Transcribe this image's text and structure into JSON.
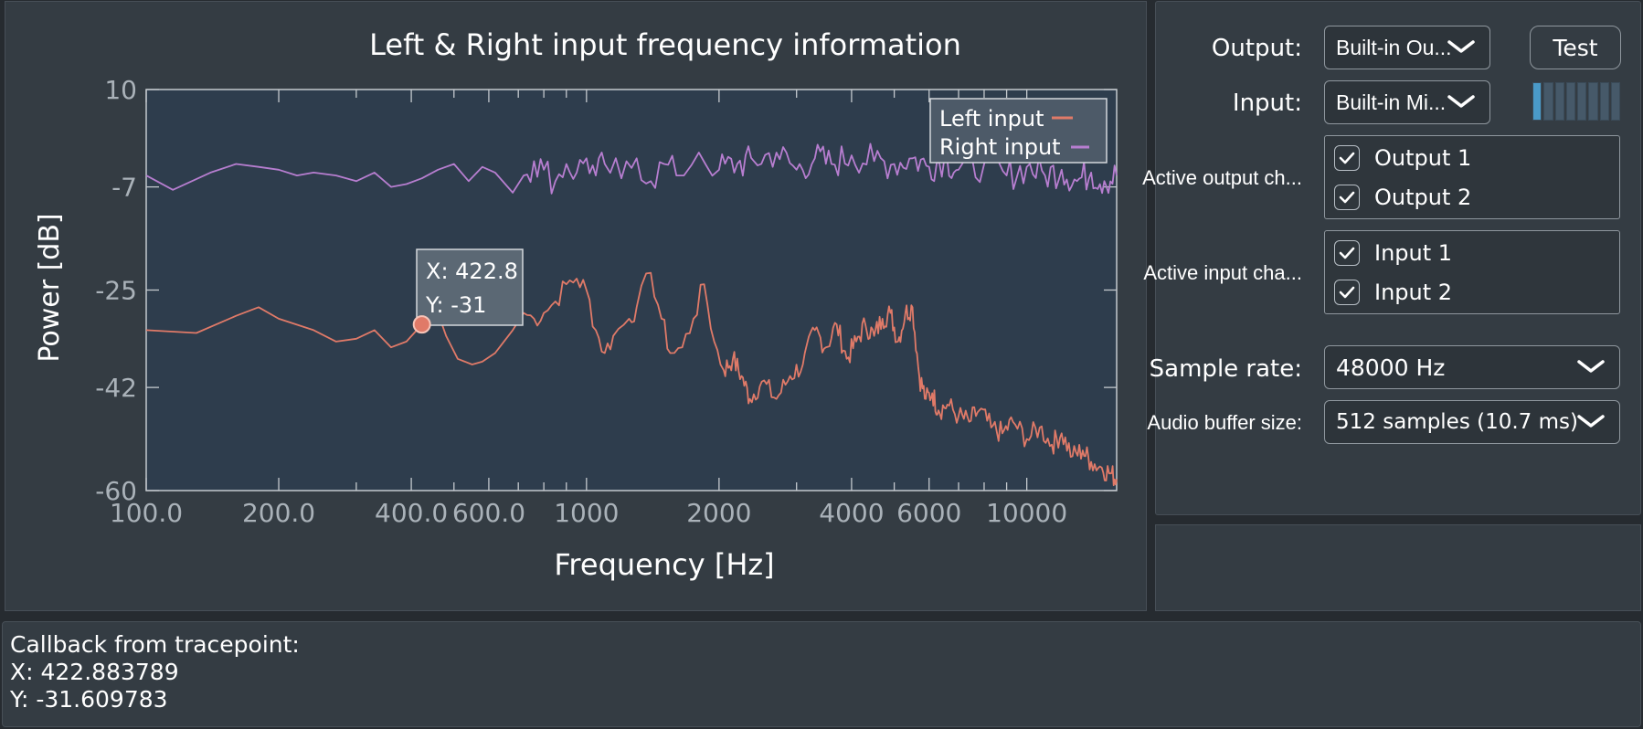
{
  "plot_panel": {
    "tooltip": {
      "x_text": "X: 422.8",
      "y_text": "Y: -31"
    }
  },
  "settings": {
    "output_label": "Output:",
    "output_value": "Built-in Ou...",
    "test_button": "Test",
    "input_label": "Input:",
    "input_value": "Built-in Mi...",
    "input_level_segments": 8,
    "input_level_active": 1,
    "active_output_label": "Active output ch...",
    "output_channels": [
      "Output 1",
      "Output 2"
    ],
    "active_input_label": "Active input cha...",
    "input_channels": [
      "Input 1",
      "Input 2"
    ],
    "sample_rate_label": "Sample rate:",
    "sample_rate_value": "48000 Hz",
    "buffer_label": "Audio buffer size:",
    "buffer_value": "512 samples (10.7 ms)"
  },
  "log": {
    "line1": "Callback from tracepoint:",
    "line2": "X: 422.883789",
    "line3": "Y: -31.609783"
  },
  "colors": {
    "left_series": "#e07a68",
    "right_series": "#b77ed0",
    "plot_bg": "#2e3d4d",
    "panel_bg": "#343c43",
    "level_active": "#4a9ac8"
  },
  "chart_data": {
    "type": "line",
    "title": "Left & Right input frequency information",
    "xlabel": "Frequency [Hz]",
    "ylabel": "Power [dB]",
    "x_scale": "log",
    "xlim": [
      100,
      16000
    ],
    "ylim": [
      -60,
      10
    ],
    "x_tick_labels": [
      {
        "v": 100,
        "label": "100.0"
      },
      {
        "v": 200,
        "label": "200.0"
      },
      {
        "v": 400,
        "label": "400.0"
      },
      {
        "v": 600,
        "label": "600.0"
      },
      {
        "v": 1000,
        "label": "1000"
      },
      {
        "v": 2000,
        "label": "2000"
      },
      {
        "v": 4000,
        "label": "4000"
      },
      {
        "v": 6000,
        "label": "6000"
      },
      {
        "v": 10000,
        "label": "10000"
      }
    ],
    "y_ticks": [
      10,
      -7,
      -25,
      -42,
      -60
    ],
    "legend_position": "top-right",
    "marker": {
      "x": 422.8,
      "y": -31
    },
    "series": [
      {
        "name": "Left input",
        "color": "#e07a68",
        "points": [
          [
            100,
            -32
          ],
          [
            130,
            -32.5
          ],
          [
            160,
            -29.5
          ],
          [
            180,
            -28
          ],
          [
            200,
            -30
          ],
          [
            240,
            -32
          ],
          [
            270,
            -34
          ],
          [
            300,
            -33.5
          ],
          [
            330,
            -32
          ],
          [
            360,
            -35
          ],
          [
            390,
            -34
          ],
          [
            422.8,
            -31
          ],
          [
            440,
            -30
          ],
          [
            460,
            -29
          ],
          [
            480,
            -33
          ],
          [
            510,
            -37
          ],
          [
            550,
            -38
          ],
          [
            580,
            -37.5
          ],
          [
            620,
            -36
          ],
          [
            680,
            -32
          ],
          [
            720,
            -29
          ],
          [
            760,
            -30
          ],
          [
            800,
            -29
          ],
          [
            850,
            -27
          ],
          [
            900,
            -24
          ],
          [
            950,
            -23
          ],
          [
            1000,
            -25
          ],
          [
            1050,
            -32
          ],
          [
            1100,
            -36
          ],
          [
            1150,
            -33
          ],
          [
            1250,
            -30
          ],
          [
            1300,
            -28
          ],
          [
            1400,
            -22
          ],
          [
            1480,
            -30
          ],
          [
            1550,
            -36
          ],
          [
            1650,
            -35
          ],
          [
            1750,
            -30
          ],
          [
            1850,
            -24
          ],
          [
            1950,
            -34
          ],
          [
            2050,
            -39
          ],
          [
            2150,
            -37
          ],
          [
            2250,
            -40
          ],
          [
            2350,
            -44
          ],
          [
            2500,
            -41
          ],
          [
            2700,
            -44
          ],
          [
            2900,
            -40
          ],
          [
            3100,
            -38
          ],
          [
            3300,
            -32
          ],
          [
            3500,
            -35
          ],
          [
            3700,
            -31
          ],
          [
            3900,
            -37
          ],
          [
            4100,
            -34
          ],
          [
            4300,
            -31
          ],
          [
            4500,
            -33
          ],
          [
            4700,
            -30
          ],
          [
            4900,
            -29
          ],
          [
            5100,
            -34
          ],
          [
            5300,
            -29
          ],
          [
            5500,
            -28
          ],
          [
            5700,
            -40
          ],
          [
            5900,
            -44
          ],
          [
            6100,
            -43
          ],
          [
            6300,
            -46
          ],
          [
            6600,
            -45
          ],
          [
            7000,
            -47
          ],
          [
            7400,
            -48
          ],
          [
            7800,
            -46
          ],
          [
            8300,
            -49
          ],
          [
            8800,
            -50
          ],
          [
            9300,
            -48
          ],
          [
            10000,
            -51
          ],
          [
            10700,
            -49
          ],
          [
            11400,
            -52
          ],
          [
            12000,
            -50
          ],
          [
            12700,
            -54
          ],
          [
            13400,
            -53
          ],
          [
            14000,
            -55
          ],
          [
            14800,
            -56
          ],
          [
            15500,
            -57
          ],
          [
            16000,
            -58
          ]
        ]
      },
      {
        "name": "Right input",
        "color": "#b77ed0",
        "points": [
          [
            100,
            -5
          ],
          [
            115,
            -7.5
          ],
          [
            140,
            -4.5
          ],
          [
            160,
            -3
          ],
          [
            180,
            -3.5
          ],
          [
            200,
            -4
          ],
          [
            220,
            -5
          ],
          [
            240,
            -4.5
          ],
          [
            270,
            -5
          ],
          [
            300,
            -6
          ],
          [
            330,
            -4.5
          ],
          [
            360,
            -7
          ],
          [
            390,
            -6.5
          ],
          [
            422.8,
            -5.5
          ],
          [
            460,
            -4
          ],
          [
            500,
            -3
          ],
          [
            540,
            -6
          ],
          [
            580,
            -3.5
          ],
          [
            620,
            -4.5
          ],
          [
            680,
            -8
          ],
          [
            720,
            -5
          ],
          [
            760,
            -2.5
          ],
          [
            800,
            -4
          ],
          [
            850,
            -6
          ],
          [
            900,
            -3
          ],
          [
            950,
            -4.5
          ],
          [
            1000,
            -2
          ],
          [
            1050,
            -5
          ],
          [
            1100,
            -3
          ],
          [
            1200,
            -5.5
          ],
          [
            1300,
            -2
          ],
          [
            1400,
            -6
          ],
          [
            1500,
            -3
          ],
          [
            1600,
            -5
          ],
          [
            1800,
            -1
          ],
          [
            2000,
            -4
          ],
          [
            2200,
            -3
          ],
          [
            2400,
            -2.5
          ],
          [
            2700,
            -1
          ],
          [
            3000,
            -4
          ],
          [
            3300,
            -2
          ],
          [
            3600,
            -3
          ],
          [
            4000,
            -1.5
          ],
          [
            4500,
            -2.5
          ],
          [
            5000,
            -3
          ],
          [
            5500,
            -2
          ],
          [
            6000,
            -3.5
          ],
          [
            6500,
            -2
          ],
          [
            7000,
            -4
          ],
          [
            8000,
            -3
          ],
          [
            9000,
            -5
          ],
          [
            10000,
            -3.5
          ],
          [
            11000,
            -5
          ],
          [
            12000,
            -4
          ],
          [
            13000,
            -6
          ],
          [
            14000,
            -4.5
          ],
          [
            15000,
            -6
          ],
          [
            16000,
            -5
          ]
        ]
      }
    ]
  }
}
